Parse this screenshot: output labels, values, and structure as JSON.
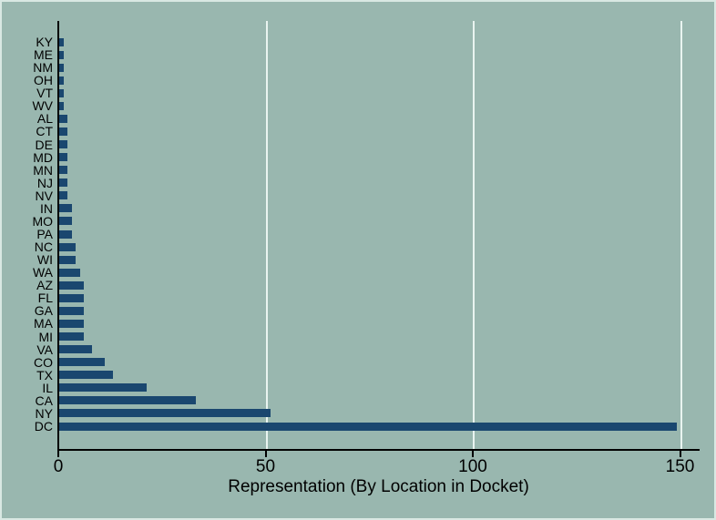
{
  "chart_data": {
    "type": "bar",
    "orientation": "horizontal",
    "title": "",
    "xlabel": "Representation (By Location in Docket)",
    "ylabel": "",
    "categories": [
      "KY",
      "ME",
      "NM",
      "OH",
      "VT",
      "WV",
      "AL",
      "CT",
      "DE",
      "MD",
      "MN",
      "NJ",
      "NV",
      "IN",
      "MO",
      "PA",
      "NC",
      "WI",
      "WA",
      "AZ",
      "FL",
      "GA",
      "MA",
      "MI",
      "VA",
      "CO",
      "TX",
      "IL",
      "CA",
      "NY",
      "DC"
    ],
    "values": [
      1,
      1,
      1,
      1,
      1,
      1,
      2,
      2,
      2,
      2,
      2,
      2,
      2,
      3,
      3,
      3,
      4,
      4,
      5,
      6,
      6,
      6,
      6,
      6,
      8,
      11,
      13,
      21,
      33,
      51,
      149
    ],
    "xticks": [
      0,
      50,
      100,
      150
    ],
    "xlim": [
      0,
      155
    ],
    "grid": "vertical gridlines at xticks, drawn behind bars",
    "legend": "none",
    "colors": {
      "bar": "#1a476f",
      "background": "#99b7af",
      "gridline": "#e9f4f0",
      "axis": "#000000",
      "text": "#000000"
    }
  }
}
